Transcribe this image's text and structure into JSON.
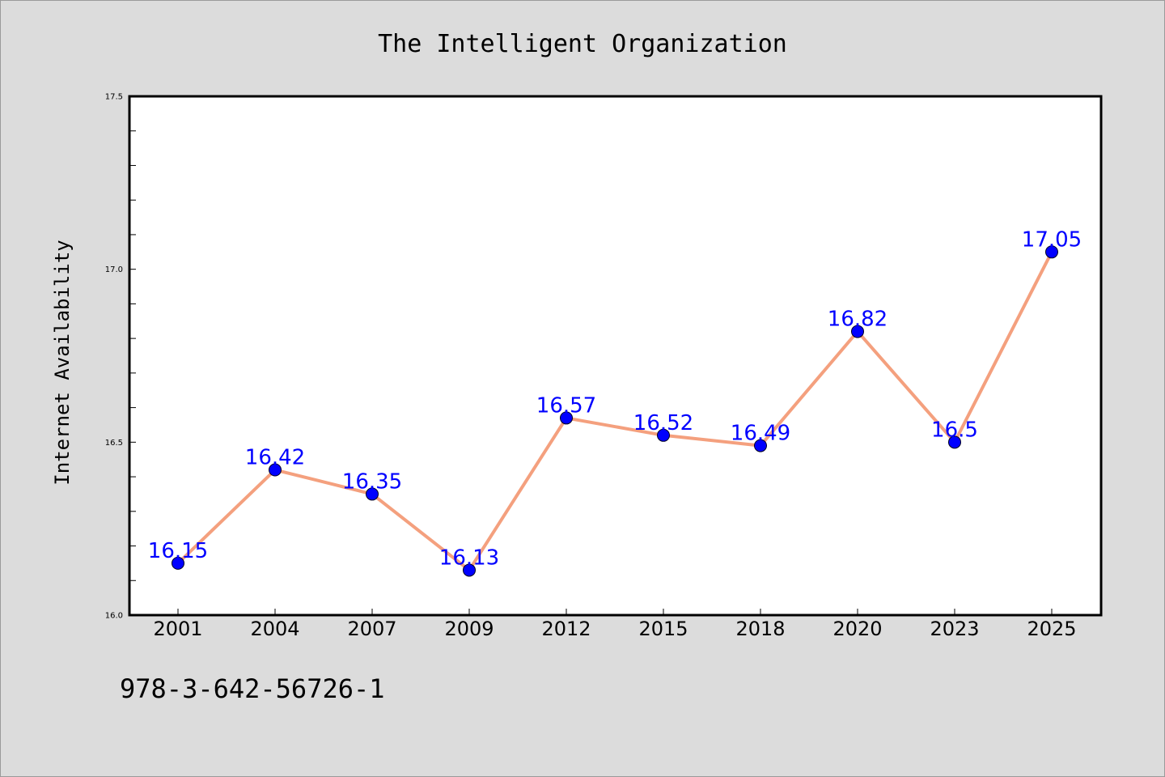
{
  "chart_data": {
    "type": "line",
    "title": "The Intelligent Organization",
    "xlabel": "",
    "ylabel": "Internet Availability",
    "categories": [
      "2001",
      "2004",
      "2007",
      "2009",
      "2012",
      "2015",
      "2018",
      "2020",
      "2023",
      "2025"
    ],
    "values": [
      16.15,
      16.42,
      16.35,
      16.13,
      16.57,
      16.52,
      16.49,
      16.82,
      16.5,
      17.05
    ],
    "data_labels": [
      "16.15",
      "16.42",
      "16.35",
      "16.13",
      "16.57",
      "16.52",
      "16.49",
      "16.82",
      "16.5",
      "17.05"
    ],
    "ylim": [
      16.0,
      17.5
    ],
    "yticks": [
      "16.0",
      "16.5",
      "17.0",
      "17.5"
    ],
    "grid": false,
    "line_color": "#f4a07e",
    "marker_color": "#0000ff",
    "label_color": "#0000ff"
  },
  "footer": {
    "code": "978-3-642-56726-1"
  }
}
